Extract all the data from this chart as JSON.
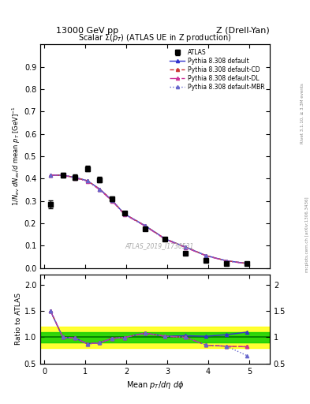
{
  "title_top_left": "13000 GeV pp",
  "title_top_right": "Z (Drell-Yan)",
  "plot_title": "Scalar Σ(p_T) (ATLAS UE in Z production)",
  "xlabel": "Mean $p_T/d\\eta\\ d\\phi$",
  "ylabel_main": "$1/N_{ev}\\ dN_{ev}/d\\ \\mathrm{mean}\\ p_T\\ [\\mathrm{GeV}]^{-1}$",
  "ylabel_ratio": "Ratio to ATLAS",
  "watermark": "ATLAS_2019_I1736531",
  "rivet_text": "Rivet 3.1.10, ≥ 3.3M events",
  "mcplots_text": "mcplots.cern.ch [arXiv:1306.3436]",
  "x_data": [
    0.15,
    0.45,
    0.75,
    1.05,
    1.35,
    1.65,
    1.95,
    2.45,
    2.95,
    3.45,
    3.95,
    4.45,
    4.95
  ],
  "atlas_y": [
    0.285,
    0.415,
    0.405,
    0.445,
    0.395,
    0.31,
    0.245,
    0.175,
    0.128,
    0.065,
    0.035,
    0.02,
    0.018
  ],
  "atlas_yerr": [
    0.018,
    0.012,
    0.012,
    0.012,
    0.012,
    0.01,
    0.008,
    0.007,
    0.005,
    0.003,
    0.002,
    0.002,
    0.002
  ],
  "pythia_default_y": [
    0.415,
    0.415,
    0.405,
    0.39,
    0.353,
    0.303,
    0.242,
    0.19,
    0.13,
    0.093,
    0.055,
    0.032,
    0.02
  ],
  "pythia_cd_y": [
    0.415,
    0.415,
    0.405,
    0.39,
    0.353,
    0.303,
    0.242,
    0.19,
    0.13,
    0.093,
    0.055,
    0.032,
    0.02
  ],
  "pythia_dl_y": [
    0.415,
    0.415,
    0.402,
    0.388,
    0.35,
    0.3,
    0.24,
    0.188,
    0.128,
    0.091,
    0.054,
    0.031,
    0.019
  ],
  "pythia_mbr_y": [
    0.415,
    0.415,
    0.405,
    0.39,
    0.353,
    0.303,
    0.242,
    0.19,
    0.13,
    0.093,
    0.055,
    0.032,
    0.02
  ],
  "ratio_default": [
    1.5,
    1.0,
    0.985,
    0.875,
    0.895,
    0.98,
    0.995,
    1.08,
    1.02,
    1.03,
    1.02,
    1.05,
    1.1
  ],
  "ratio_cd": [
    1.5,
    1.0,
    0.985,
    0.875,
    0.895,
    0.98,
    0.995,
    1.08,
    1.02,
    1.0,
    0.85,
    0.83,
    0.82
  ],
  "ratio_dl": [
    1.5,
    1.0,
    0.985,
    0.875,
    0.895,
    0.98,
    0.995,
    1.08,
    1.02,
    1.0,
    0.85,
    0.83,
    0.82
  ],
  "ratio_mbr": [
    1.5,
    1.0,
    0.985,
    0.875,
    0.895,
    0.98,
    0.995,
    1.08,
    1.02,
    1.0,
    0.85,
    0.83,
    0.65
  ],
  "color_default": "#3333cc",
  "color_cd": "#cc3333",
  "color_dl": "#cc3399",
  "color_mbr": "#6666cc",
  "ylim_main": [
    0.0,
    1.0
  ],
  "ylim_ratio": [
    0.5,
    2.2
  ],
  "xlim": [
    -0.1,
    5.5
  ],
  "green_band": 0.1,
  "yellow_band": 0.2
}
